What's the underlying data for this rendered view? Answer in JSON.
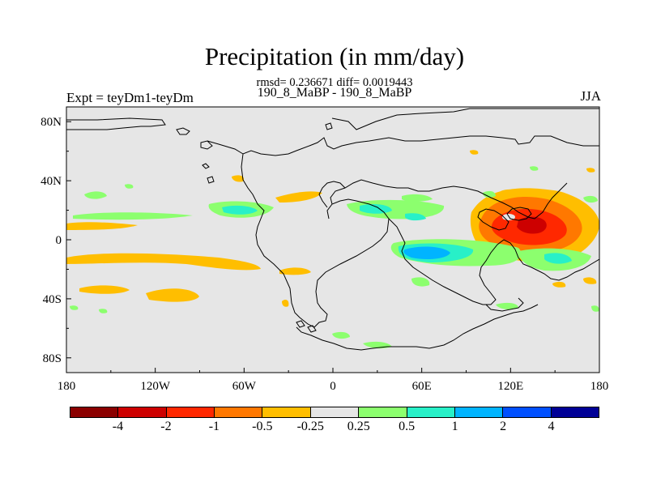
{
  "title": "Precipitation (in mm/day)",
  "stats": "rmsd= 0.236671 diff= 0.0019443",
  "subtitle": "190_8_MaBP - 190_8_MaBP",
  "left_label": "Expt = teyDm1-teyDm",
  "right_label": "JJA",
  "chart_data": {
    "type": "heatmap",
    "description": "Global difference map of precipitation",
    "xlim": [
      -180,
      180
    ],
    "ylim": [
      -90,
      90
    ],
    "x_ticks": [
      {
        "value": -180,
        "label": "180"
      },
      {
        "value": -120,
        "label": "120W"
      },
      {
        "value": -60,
        "label": "60W"
      },
      {
        "value": 0,
        "label": "0"
      },
      {
        "value": 60,
        "label": "60E"
      },
      {
        "value": 120,
        "label": "120E"
      },
      {
        "value": 180,
        "label": "180"
      }
    ],
    "y_ticks": [
      {
        "value": 80,
        "label": "80N"
      },
      {
        "value": 40,
        "label": "40N"
      },
      {
        "value": 0,
        "label": "0"
      },
      {
        "value": -40,
        "label": "40S"
      },
      {
        "value": -80,
        "label": "80S"
      }
    ],
    "colorbar": {
      "levels": [
        "-4",
        "-2",
        "-1",
        "-0.5",
        "-0.25",
        "0.25",
        "0.5",
        "1",
        "2",
        "4"
      ],
      "colors": [
        "#8B0000",
        "#CD0000",
        "#FF2800",
        "#FF7800",
        "#FFBE00",
        "#E6E6E6",
        "#8CFF6E",
        "#28F0C8",
        "#00B4FF",
        "#0050FF",
        "#000096"
      ]
    },
    "anomalies": [
      {
        "region": "western Pacific 120E-170E, 20N-5S",
        "value": -2
      },
      {
        "region": "western Pacific core 130E-150E, 10N",
        "value": -4
      },
      {
        "region": "western Pacific 100E-170E, 35N-15S",
        "value": -0.5
      },
      {
        "region": "equatorial Pacific 180-120W, 10N",
        "value": -0.25
      },
      {
        "region": "south Pacific 180-100W, 10S-20S",
        "value": -0.25
      },
      {
        "region": "south Pacific 160W-150W, 35S",
        "value": -0.25
      },
      {
        "region": "south Atlantic 60W-30W, 35S",
        "value": -0.25
      },
      {
        "region": "north Atlantic 40W-0, 25N",
        "value": -0.25
      },
      {
        "region": "Indian Ocean 40E-100E, 5S-20S",
        "value": 1
      },
      {
        "region": "Indian Ocean 55E-80E, 10S",
        "value": 2
      },
      {
        "region": "Africa 20E-45E, 15N",
        "value": 1
      },
      {
        "region": "central America 95W-75W, 15N",
        "value": 1
      },
      {
        "region": "equatorial Atlantic 40W-10W, 15N",
        "value": 0.25
      },
      {
        "region": "south Pacific 140E-170E, 15S",
        "value": 1
      }
    ]
  }
}
